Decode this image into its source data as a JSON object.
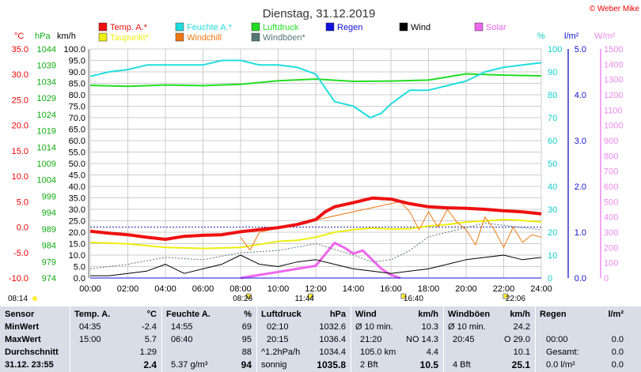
{
  "header": {
    "title": "Dienstag, 31.12.2019",
    "copyright": "© Weber Mike"
  },
  "legend": [
    {
      "label": "Temp. A.*",
      "color": "#ee1111"
    },
    {
      "label": "Feuchte A.*",
      "color": "#22dddd"
    },
    {
      "label": "Luftdruck",
      "color": "#22dd22"
    },
    {
      "label": "Regen",
      "color": "#1111dd"
    },
    {
      "label": "Wind",
      "color": "#000000"
    },
    {
      "label": "Solar",
      "color": "#ee66ee"
    },
    {
      "label": "Taupunkt*",
      "color": "#eeee11"
    },
    {
      "label": "Windchill",
      "color": "#ee7711"
    },
    {
      "label": "Windböen*",
      "color": "#557777"
    }
  ],
  "axes": {
    "temp_unit": "°C",
    "hpa_unit": "hPa",
    "kmh_unit": "km/h",
    "pct_unit": "%",
    "rain_unit": "l/m²",
    "solar_unit": "W/m²",
    "temp_ticks": [
      "35.0",
      "30.0",
      "25.0",
      "20.0",
      "15.0",
      "10.0",
      "5.0",
      "0.0",
      "-5.0",
      "-10.0"
    ],
    "hpa_ticks": [
      "1044",
      "1039",
      "1034",
      "1029",
      "1024",
      "1019",
      "1014",
      "1009",
      "1004",
      "999",
      "994",
      "989",
      "984",
      "979",
      "974"
    ],
    "kmh_ticks": [
      "100.0",
      "95.0",
      "90.0",
      "85.0",
      "80.0",
      "75.0",
      "70.0",
      "65.0",
      "60.0",
      "55.0",
      "50.0",
      "45.0",
      "40.0",
      "35.0",
      "30.0",
      "25.0",
      "20.0",
      "15.0",
      "10.0",
      "5.0",
      "0.0"
    ],
    "pct_ticks": [
      "100",
      "90",
      "80",
      "70",
      "60",
      "50",
      "40",
      "30",
      "20",
      "10",
      "0"
    ],
    "rain_ticks": [
      "5.0",
      "4.0",
      "3.0",
      "2.0",
      "1.0",
      "0.0"
    ],
    "solar_ticks": [
      "1500",
      "1400",
      "1300",
      "1200",
      "1100",
      "1000",
      "900",
      "800",
      "700",
      "600",
      "500",
      "400",
      "300",
      "200",
      "100",
      "0"
    ],
    "time_ticks": [
      "00:00",
      "02:00",
      "04:00",
      "06:00",
      "08:00",
      "10:00",
      "12:00",
      "14:00",
      "16:00",
      "18:00",
      "20:00",
      "22:00",
      "24:00"
    ]
  },
  "sun": {
    "rise_left": "08:14",
    "rise": "08:26",
    "noon": "11:44",
    "set": "16:40",
    "moon": "22:06"
  },
  "table": {
    "sensor": "Sensor",
    "minwert": "MinWert",
    "maxwert": "MaxWert",
    "durchschnitt": "Durchschnitt",
    "date": "31.12. 23:55",
    "temp": {
      "h": "Temp. A.",
      "u": "°C",
      "min_t": "04:35",
      "min_v": "-2.4",
      "max_t": "15:00",
      "max_v": "5.7",
      "avg": "1.29",
      "cur": "2.4"
    },
    "hum": {
      "h": "Feuchte A.",
      "u": "%",
      "min_t": "14:55",
      "min_v": "69",
      "max_t": "06:40",
      "max_v": "95",
      "avg": "88",
      "abs": "5.37 g/m³",
      "cur": "94"
    },
    "press": {
      "h": "Luftdruck",
      "u": "hPa",
      "min_t": "02:10",
      "min_v": "1032.6",
      "max_t": "20:15",
      "max_v": "1036.4",
      "trend": "^1.2hPa/h",
      "avg": "1034.4",
      "cond": "sonnig",
      "cur": "1035.8"
    },
    "wind": {
      "h": "Wind",
      "u": "km/h",
      "r1": "Ø 10 min.",
      "v1": "10.3",
      "t2": "21:20",
      "d2": "NO 14.3",
      "r3": "105.0 km",
      "v3": "4.4",
      "bft": "2 Bft",
      "cur": "10.5"
    },
    "gust": {
      "h": "Windböen",
      "u": "km/h",
      "r1": "Ø 10 min.",
      "v1": "24.2",
      "t2": "20:45",
      "d2": "O 29.0",
      "v3": "10.1",
      "bft": "4 Bft",
      "cur": "25.1"
    },
    "rain": {
      "h": "Regen",
      "u": "l/m²",
      "t1": "00:00",
      "v1": "0.0",
      "gesamt": "Gesamt:",
      "v2": "0.0",
      "cur": "0.0 l/m²",
      "cur2": "0.0"
    }
  },
  "chart_data": {
    "type": "line",
    "x_unit": "hours",
    "xlim": [
      0,
      24
    ],
    "series": [
      {
        "name": "Temp. A.*",
        "axis": "°C",
        "x": [
          0,
          1,
          2,
          3,
          4,
          5,
          6,
          7,
          8,
          9,
          10,
          11,
          12,
          12.5,
          13,
          14,
          15,
          16,
          17,
          18,
          19,
          20,
          21,
          22,
          23,
          24
        ],
        "values": [
          -0.8,
          -1.2,
          -1.5,
          -2.0,
          -2.4,
          -1.8,
          -1.6,
          -1.5,
          -0.9,
          -0.5,
          -0.1,
          0.5,
          1.5,
          3.0,
          4.0,
          4.8,
          5.7,
          5.5,
          4.6,
          4.0,
          3.8,
          3.7,
          3.5,
          3.2,
          3.0,
          2.6
        ]
      },
      {
        "name": "Feuchte A.*",
        "axis": "%",
        "x": [
          0,
          1,
          2,
          3,
          4,
          5,
          6,
          7,
          8,
          9,
          10,
          11,
          12,
          13,
          14,
          14.9,
          15.5,
          16,
          17,
          18,
          19,
          20,
          21,
          22,
          23,
          24
        ],
        "values": [
          88,
          90,
          91,
          93,
          93,
          93,
          93,
          95,
          95,
          93,
          93,
          92,
          89,
          77,
          75,
          70,
          72,
          76,
          82,
          82,
          84,
          86,
          90,
          92,
          93,
          94
        ]
      },
      {
        "name": "Luftdruck",
        "axis": "hPa",
        "x": [
          0,
          2,
          4,
          6,
          8,
          10,
          12,
          14,
          16,
          18,
          20,
          22,
          24
        ],
        "values": [
          1032.9,
          1032.6,
          1033.0,
          1032.8,
          1033.2,
          1034.3,
          1034.8,
          1034.1,
          1034.2,
          1034.5,
          1036.4,
          1036.0,
          1035.8
        ]
      },
      {
        "name": "Taupunkt*",
        "axis": "°C",
        "x": [
          0,
          2,
          4,
          6,
          8,
          10,
          11,
          12,
          13,
          14,
          15,
          16,
          17,
          18,
          19,
          20,
          21,
          22,
          23,
          24
        ],
        "values": [
          -3.0,
          -3.3,
          -4.0,
          -4.2,
          -4.0,
          -2.8,
          -2.6,
          -2.0,
          -1.0,
          -0.5,
          -0.2,
          -0.4,
          -0.3,
          0.2,
          0.5,
          1.0,
          1.2,
          1.5,
          1.3,
          1.0
        ]
      },
      {
        "name": "Windchill",
        "axis": "°C",
        "x": [
          8,
          8.5,
          9,
          16.5,
          17,
          17.5,
          18,
          18.5,
          19,
          19.5,
          20,
          20.5,
          21,
          21.5,
          22,
          22.5,
          23,
          23.5,
          24
        ],
        "values": [
          -2.0,
          -4.5,
          -1.0,
          5.0,
          3.0,
          -0.5,
          3.0,
          0.0,
          3.5,
          1.0,
          -0.5,
          -3.5,
          2.0,
          -0.5,
          -4.0,
          0.0,
          -3.0,
          -1.5,
          -2.0
        ]
      },
      {
        "name": "Wind",
        "axis": "km/h",
        "x": [
          0,
          1,
          2,
          3,
          4,
          5,
          6,
          7,
          8,
          9,
          10,
          11,
          12,
          13,
          14,
          15,
          16,
          17,
          18,
          19,
          20,
          21,
          22,
          23,
          24
        ],
        "values": [
          1,
          1,
          2,
          3,
          6,
          2,
          4,
          6,
          10,
          6,
          5,
          7,
          8,
          6,
          4,
          3,
          2,
          3,
          4,
          6,
          8,
          9,
          10,
          8,
          9
        ]
      },
      {
        "name": "Windböen*",
        "axis": "km/h",
        "x": [
          0,
          2,
          4,
          6,
          8,
          10,
          12,
          14,
          15,
          16,
          17,
          18,
          20,
          21,
          22,
          24
        ],
        "values": [
          4,
          6,
          9,
          8,
          11,
          12,
          15,
          10,
          7,
          8,
          12,
          18,
          22,
          24,
          23,
          21
        ]
      },
      {
        "name": "Solar",
        "axis": "W/m²",
        "x": [
          8,
          9,
          10,
          11,
          12,
          13,
          13.5,
          14,
          14.5,
          15,
          15.5,
          16,
          16.5
        ],
        "values": [
          0,
          20,
          40,
          60,
          80,
          230,
          200,
          160,
          180,
          120,
          60,
          20,
          0
        ]
      },
      {
        "name": "Regen",
        "axis": "l/m²",
        "x": [
          0,
          24
        ],
        "values": [
          0,
          0
        ]
      }
    ]
  }
}
